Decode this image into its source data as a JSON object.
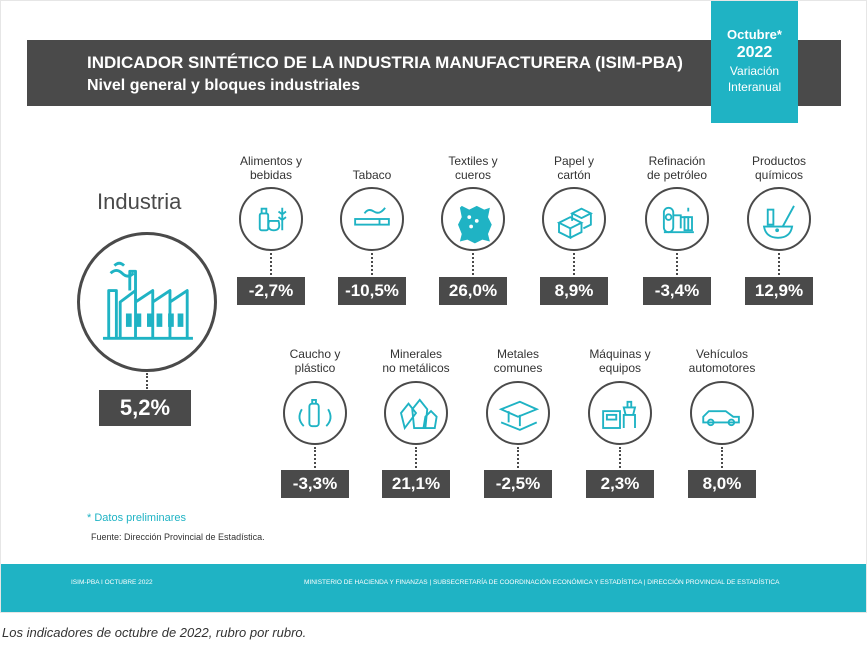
{
  "banner": {
    "title": "INDICADOR SINTÉTICO DE LA INDUSTRIA MANUFACTURERA (ISIM-PBA)",
    "subtitle": "Nivel general y bloques industriales"
  },
  "tag": {
    "month": "Octubre*",
    "year": "2022",
    "line1": "Variación",
    "line2": "Interanual"
  },
  "colors": {
    "accent": "#1fb3c4",
    "dark": "#4a4a4a"
  },
  "chart_data": {
    "type": "table",
    "total": {
      "label": "Industria",
      "value": "5,2%",
      "icon": "factory-icon"
    },
    "sectors": [
      {
        "label": [
          "Alimentos y",
          "bebidas"
        ],
        "value": "-2,7%",
        "icon": "food-beverage-icon"
      },
      {
        "label": [
          "Tabaco"
        ],
        "value": "-10,5%",
        "icon": "cigarette-icon"
      },
      {
        "label": [
          "Textiles y",
          "cueros"
        ],
        "value": "26,0%",
        "icon": "hide-leather-icon"
      },
      {
        "label": [
          "Papel y",
          "cartón"
        ],
        "value": "8,9%",
        "icon": "boxes-icon"
      },
      {
        "label": [
          "Refinación",
          "de petróleo"
        ],
        "value": "-3,4%",
        "icon": "refinery-icon"
      },
      {
        "label": [
          "Productos",
          "químicos"
        ],
        "value": "12,9%",
        "icon": "chemistry-icon"
      },
      {
        "label": [
          "Caucho y",
          "plástico"
        ],
        "value": "-3,3%",
        "icon": "recycle-bottle-icon"
      },
      {
        "label": [
          "Minerales",
          "no metálicos"
        ],
        "value": "21,1%",
        "icon": "crystal-icon"
      },
      {
        "label": [
          "Metales",
          "comunes"
        ],
        "value": "-2,5%",
        "icon": "steel-beam-icon"
      },
      {
        "label": [
          "Máquinas y",
          "equipos"
        ],
        "value": "2,3%",
        "icon": "machine-icon"
      },
      {
        "label": [
          "Vehículos",
          "automotores"
        ],
        "value": "8,0%",
        "icon": "car-icon"
      }
    ]
  },
  "notes": {
    "preliminary": "* Datos preliminares",
    "source": "Fuente: Dirección Provincial de Estadística."
  },
  "footer": {
    "left": "ISIM-PBA I OCTUBRE 2022",
    "right": "MINISTERIO DE HACIENDA Y FINANZAS | SUBSECRETARÍA DE COORDINACIÓN ECONÓMICA Y ESTADÍSTICA | DIRECCIÓN PROVINCIAL DE ESTADÍSTICA"
  },
  "caption": "Los indicadores de octubre de 2022, rubro por rubro."
}
